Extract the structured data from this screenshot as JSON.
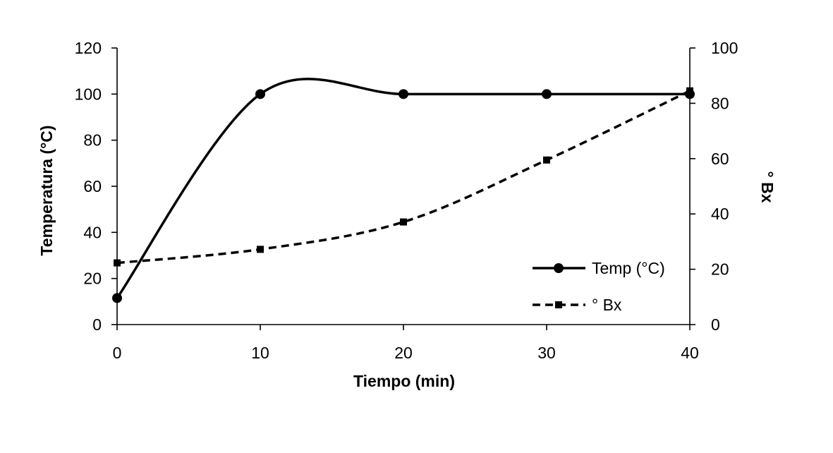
{
  "chart_data": {
    "type": "line",
    "title": "",
    "xlabel": "Tiempo (min)",
    "ylabel_left": "Temperatura (°C)",
    "ylabel_right": "° Bx",
    "x": [
      0,
      10,
      20,
      30,
      40
    ],
    "xlim": [
      0,
      40
    ],
    "x_ticks": [
      "0",
      "10",
      "20",
      "30",
      "40"
    ],
    "ylim_left": [
      0,
      120
    ],
    "y_ticks_left": [
      "0",
      "20",
      "40",
      "60",
      "80",
      "100",
      "120"
    ],
    "ylim_right": [
      0,
      100
    ],
    "y_ticks_right": [
      "0",
      "20",
      "40",
      "60",
      "80",
      "100"
    ],
    "grid": false,
    "legend_position": "bottom-right inside",
    "series": [
      {
        "name": "Temp (°C)",
        "axis": "left",
        "values": [
          11.5,
          100,
          100,
          100,
          100
        ],
        "line_style": "solid",
        "marker": "circle",
        "color": "#000000",
        "smoothed": true
      },
      {
        "name": "° Bx",
        "axis": "right",
        "values": [
          22.3,
          27.2,
          37.1,
          59.5,
          84.5
        ],
        "line_style": "dashed",
        "marker": "square",
        "color": "#000000",
        "smoothed": true
      }
    ]
  }
}
